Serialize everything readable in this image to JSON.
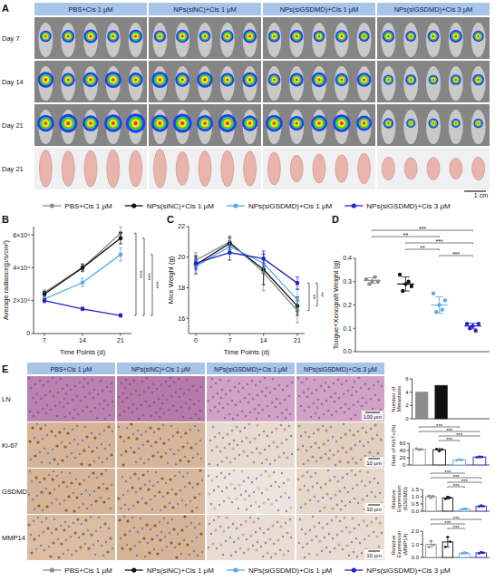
{
  "figure": {
    "panel_labels": [
      "A",
      "B",
      "C",
      "D",
      "E"
    ],
    "groups": [
      "PBS+Cis 1 μM",
      "NPs(siNC)+Cis 1 μM",
      "NPs(siGSDMD)+Cis 1 μM",
      "NPs(siGSDMD)+Cis 3 μM"
    ],
    "imaging_rows": [
      "Day 7",
      "Day 14",
      "Day 21",
      "Day 21"
    ],
    "imaging_scale_bar": "1 cm",
    "histology_rows": [
      "LN",
      "Ki-67",
      "GSDMD",
      "MMP14"
    ],
    "histology_scale_bars": [
      "100 μm",
      "10 μm",
      "10 μm",
      "10 μm"
    ]
  },
  "chart_data": [
    {
      "type": "line",
      "y_label": "Average radiance(p/s/cm²)",
      "x_label": "Time Points (d)",
      "x": [
        7,
        14,
        21
      ],
      "xlim": [
        5,
        23
      ],
      "xticks": [
        7,
        14,
        21
      ],
      "ylim": [
        0,
        65000
      ],
      "yticks": [
        0,
        {
          "value": 20000,
          "label": "2×10⁴"
        },
        {
          "value": 40000,
          "label": "4×10⁴"
        },
        {
          "value": 60000,
          "label": "6×10⁴"
        }
      ],
      "marker": "circle",
      "legend": "top",
      "series": [
        {
          "name": "PBS+Cis 1 μM",
          "color": "#8c8c8c",
          "values": [
            25000,
            40000,
            61000
          ],
          "errors": [
            1500,
            2500,
            4000
          ]
        },
        {
          "name": "NPs(siNC)+Cis 1 μM",
          "color": "#111111",
          "values": [
            24000,
            40000,
            58000
          ],
          "errors": [
            1500,
            2000,
            3500
          ]
        },
        {
          "name": "NPs(siGSDMD)+Cis 1 μM",
          "color": "#5aa9e6",
          "values": [
            21000,
            31000,
            48000
          ],
          "errors": [
            1500,
            2500,
            4000
          ]
        },
        {
          "name": "NPs(siGSDMD)+Cis 3 μM",
          "color": "#2323c8",
          "values": [
            20000,
            15000,
            11000
          ],
          "errors": [
            1200,
            1000,
            1000
          ]
        }
      ],
      "annotations": [
        {
          "text": "***",
          "between": [
            0,
            3
          ]
        },
        {
          "text": "***",
          "between": [
            1,
            3
          ]
        },
        {
          "text": "***",
          "between": [
            2,
            3
          ]
        }
      ]
    },
    {
      "type": "line",
      "y_label": "Mice Weight (g)",
      "x_label": "Time Points (d)",
      "x": [
        0,
        7,
        14,
        21
      ],
      "xlim": [
        -1.5,
        22.5
      ],
      "xticks": [
        0,
        7,
        14,
        21
      ],
      "ylim": [
        15,
        22
      ],
      "yticks": [
        16,
        18,
        20,
        22
      ],
      "marker": "circle",
      "series": [
        {
          "name": "PBS+Cis 1 μM",
          "color": "#8c8c8c",
          "values": [
            19.8,
            21.0,
            19.0,
            16.5
          ],
          "errors": [
            0.5,
            0.4,
            1.2,
            0.8
          ]
        },
        {
          "name": "NPs(siNC)+Cis 1 μM",
          "color": "#111111",
          "values": [
            19.5,
            20.9,
            19.2,
            16.8
          ],
          "errors": [
            0.6,
            0.4,
            1.0,
            0.6
          ]
        },
        {
          "name": "NPs(siGSDMD)+Cis 1 μM",
          "color": "#5aa9e6",
          "values": [
            19.4,
            20.7,
            19.6,
            17.2
          ],
          "errors": [
            0.5,
            0.5,
            0.6,
            0.7
          ]
        },
        {
          "name": "NPs(siGSDMD)+Cis 3 μM",
          "color": "#2323c8",
          "values": [
            19.6,
            20.3,
            19.9,
            18.3
          ],
          "errors": [
            0.4,
            0.5,
            0.5,
            0.4
          ]
        }
      ],
      "annotations": [
        {
          "text": "**",
          "between": [
            0,
            3
          ]
        },
        {
          "text": "**",
          "between": [
            1,
            3
          ]
        }
      ]
    },
    {
      "type": "scatter",
      "y_label": "Tongue+Xenograft Weight (g)",
      "categories": [
        null,
        null,
        null,
        null
      ],
      "values": [
        0.305,
        0.29,
        0.2,
        0.11
      ],
      "errors": [
        0.012,
        0.03,
        0.035,
        0.012
      ],
      "points": [
        [
          0.31,
          0.29,
          0.3,
          0.32,
          0.3
        ],
        [
          0.33,
          0.26,
          0.29,
          0.3,
          0.28
        ],
        [
          0.25,
          0.17,
          0.2,
          0.18,
          0.22
        ],
        [
          0.12,
          0.1,
          0.11,
          0.09,
          0.12
        ]
      ],
      "colors": [
        "#8c8c8c",
        "#111111",
        "#5aa9e6",
        "#2323c8"
      ],
      "ylim": [
        0,
        0.4
      ],
      "yticks": [
        {
          "value": 0,
          "label": "0.0"
        },
        0.1,
        0.2,
        0.3,
        0.4
      ],
      "annotations": [
        {
          "text": "***",
          "between": [
            0,
            3
          ]
        },
        {
          "text": "**",
          "between": [
            0,
            2
          ]
        },
        {
          "text": "***",
          "between": [
            1,
            3
          ]
        },
        {
          "text": "**",
          "between": [
            1,
            2
          ]
        },
        {
          "text": "***",
          "between": [
            2,
            3
          ]
        }
      ]
    },
    {
      "type": "bar",
      "y_label": "Number of Metastasis",
      "categories": [
        null,
        null,
        null,
        null
      ],
      "values": [
        4,
        5,
        0,
        0
      ],
      "colors": [
        "#8c8c8c",
        "#111111",
        "#5aa9e6",
        "#2323c8"
      ],
      "ylim": [
        0,
        6
      ],
      "yticks": [
        0,
        2,
        4,
        6
      ],
      "legend": "bottom"
    },
    {
      "type": "bar",
      "y_label": "Rate of Ki67+(%)",
      "categories": [
        null,
        null,
        null,
        null
      ],
      "values": [
        43,
        42,
        14,
        22
      ],
      "errors": [
        2,
        3,
        1,
        2
      ],
      "points": [
        [
          45,
          42,
          43
        ],
        [
          44,
          38,
          43
        ],
        [
          13,
          15,
          14
        ],
        [
          21,
          23,
          22
        ]
      ],
      "colors": [
        "#8c8c8c",
        "#111111",
        "#5aa9e6",
        "#2323c8"
      ],
      "ylim": [
        0,
        60
      ],
      "yticks": [
        0,
        20,
        40,
        60
      ],
      "annotations": [
        {
          "text": "***",
          "between": [
            0,
            2
          ]
        },
        {
          "text": "***",
          "between": [
            0,
            3
          ]
        },
        {
          "text": "***",
          "between": [
            1,
            3
          ]
        },
        {
          "text": "***",
          "between": [
            1,
            2
          ]
        }
      ]
    },
    {
      "type": "bar",
      "y_label": "Relative Expression(GSDMD)",
      "categories": [
        null,
        null,
        null,
        null
      ],
      "values": [
        1.0,
        0.92,
        0.15,
        0.35
      ],
      "errors": [
        0.08,
        0.08,
        0.04,
        0.05
      ],
      "points": [
        [
          1.05,
          0.92,
          1.03
        ],
        [
          0.85,
          0.98,
          0.93
        ],
        [
          0.12,
          0.18,
          0.15
        ],
        [
          0.32,
          0.4,
          0.33
        ]
      ],
      "colors": [
        "#8c8c8c",
        "#111111",
        "#5aa9e6",
        "#2323c8"
      ],
      "ylim": [
        0,
        1.5
      ],
      "yticks": [
        {
          "value": 0,
          "label": "0.0"
        },
        0.5,
        {
          "value": 1,
          "label": "1.0"
        },
        1.5
      ],
      "annotations": [
        {
          "text": "***",
          "between": [
            0,
            2
          ]
        },
        {
          "text": "***",
          "between": [
            0,
            3
          ]
        },
        {
          "text": "***",
          "between": [
            1,
            3
          ]
        },
        {
          "text": "***",
          "between": [
            1,
            2
          ]
        }
      ]
    },
    {
      "type": "bar",
      "y_label": "Relative Expression(MMP14)",
      "categories": [
        null,
        null,
        null,
        null
      ],
      "values": [
        1.0,
        1.18,
        0.33,
        0.35
      ],
      "errors": [
        0.22,
        0.38,
        0.05,
        0.05
      ],
      "points": [
        [
          0.8,
          1.25,
          0.95
        ],
        [
          0.8,
          1.55,
          1.2
        ],
        [
          0.3,
          0.38,
          0.32
        ],
        [
          0.3,
          0.4,
          0.35
        ]
      ],
      "colors": [
        "#8c8c8c",
        "#111111",
        "#5aa9e6",
        "#2323c8"
      ],
      "ylim": [
        0,
        2
      ],
      "yticks": [
        {
          "value": 0,
          "label": "0.0"
        },
        {
          "value": 1,
          "label": "1.0"
        },
        {
          "value": 2,
          "label": "2.0"
        }
      ],
      "annotations": [
        {
          "text": "***",
          "between": [
            0,
            3
          ]
        },
        {
          "text": "***",
          "between": [
            0,
            2
          ]
        },
        {
          "text": "***",
          "between": [
            1,
            2
          ]
        }
      ]
    }
  ]
}
